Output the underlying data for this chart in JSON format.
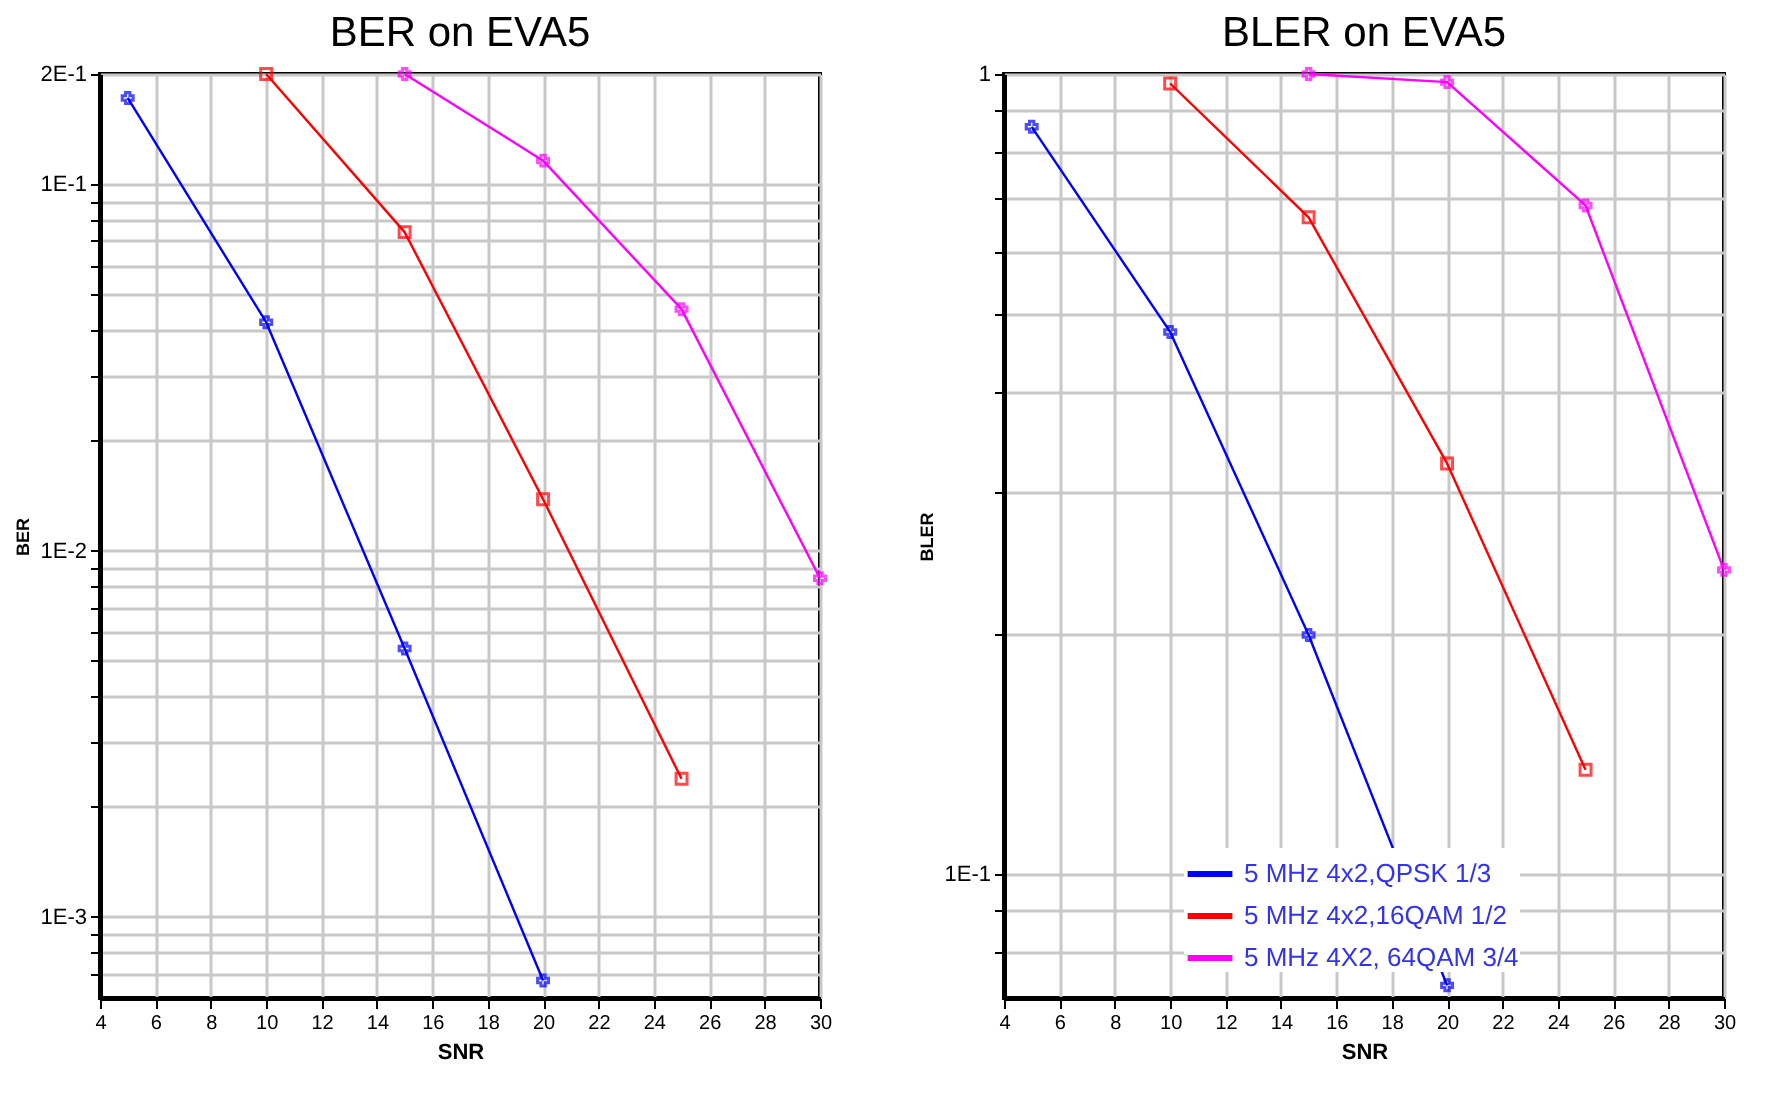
{
  "chart_data": [
    {
      "type": "line",
      "title": "BER on EVA5",
      "xlabel": "SNR",
      "ylabel": "BER",
      "log": "y",
      "grid": true,
      "legend": false,
      "xlim": [
        4,
        30
      ],
      "xticks": [
        4,
        6,
        8,
        10,
        12,
        14,
        16,
        18,
        20,
        22,
        24,
        26,
        28,
        30
      ],
      "ylim": [
        0.0006,
        0.2
      ],
      "yticks": [
        {
          "value": 0.2,
          "label": "2E-1"
        },
        {
          "value": 0.1,
          "label": "1E-1"
        },
        {
          "value": 0.09,
          "label": null
        },
        {
          "value": 0.08,
          "label": null
        },
        {
          "value": 0.07,
          "label": null
        },
        {
          "value": 0.06,
          "label": null
        },
        {
          "value": 0.05,
          "label": null
        },
        {
          "value": 0.04,
          "label": null
        },
        {
          "value": 0.03,
          "label": null
        },
        {
          "value": 0.02,
          "label": null
        },
        {
          "value": 0.01,
          "label": "1E-2"
        },
        {
          "value": 0.009,
          "label": null
        },
        {
          "value": 0.008,
          "label": null
        },
        {
          "value": 0.007,
          "label": null
        },
        {
          "value": 0.006,
          "label": null
        },
        {
          "value": 0.005,
          "label": null
        },
        {
          "value": 0.004,
          "label": null
        },
        {
          "value": 0.003,
          "label": null
        },
        {
          "value": 0.002,
          "label": null
        },
        {
          "value": 0.001,
          "label": "1E-3"
        },
        {
          "value": 0.0009,
          "label": null
        },
        {
          "value": 0.0008,
          "label": null
        },
        {
          "value": 0.0007,
          "label": null
        }
      ],
      "series": [
        {
          "color": "#0000ff",
          "marker": "cross",
          "x": [
            5,
            10,
            15,
            20
          ],
          "values": [
            0.172,
            0.042,
            0.0054,
            0.00067
          ]
        },
        {
          "color": "#ff0000",
          "marker": "square",
          "x": [
            10,
            15,
            20,
            25
          ],
          "values": [
            0.2,
            0.074,
            0.0138,
            0.00238
          ]
        },
        {
          "color": "#ff00ff",
          "marker": "cross",
          "x": [
            15,
            20,
            25,
            30
          ],
          "values": [
            0.2,
            0.116,
            0.0456,
            0.0084
          ]
        }
      ]
    },
    {
      "type": "line",
      "title": "BLER on EVA5",
      "xlabel": "SNR",
      "ylabel": "BLER",
      "log": "y",
      "grid": true,
      "legend": "bottom",
      "xlim": [
        4,
        30
      ],
      "xticks": [
        4,
        6,
        8,
        10,
        12,
        14,
        16,
        18,
        20,
        22,
        24,
        26,
        28,
        30
      ],
      "ylim": [
        0.07,
        1
      ],
      "yticks": [
        1,
        {
          "value": 0.9,
          "label": null
        },
        {
          "value": 0.8,
          "label": null
        },
        {
          "value": 0.7,
          "label": null
        },
        {
          "value": 0.6,
          "label": null
        },
        {
          "value": 0.5,
          "label": null
        },
        {
          "value": 0.4,
          "label": null
        },
        {
          "value": 0.3,
          "label": null
        },
        {
          "value": 0.2,
          "label": null
        },
        {
          "value": 0.1,
          "label": "1E-1"
        },
        {
          "value": 0.09,
          "label": null
        },
        {
          "value": 0.08,
          "label": null
        }
      ],
      "series": [
        {
          "name": "5 MHz 4x2,QPSK 1/3",
          "color": "#0000ff",
          "marker": "cross",
          "x": [
            5,
            10,
            15,
            20
          ],
          "values": [
            0.859,
            0.476,
            0.199,
            0.0726
          ]
        },
        {
          "name": "5 MHz 4x2,16QAM 1/2",
          "color": "#ff0000",
          "marker": "square",
          "x": [
            10,
            15,
            20,
            25
          ],
          "values": [
            0.973,
            0.662,
            0.326,
            0.135
          ]
        },
        {
          "name": "5 MHz 4X2, 64QAM 3/4",
          "color": "#ff00ff",
          "marker": "cross",
          "x": [
            15,
            20,
            25,
            30
          ],
          "values": [
            1.0,
            0.977,
            0.685,
            0.24
          ]
        }
      ]
    }
  ]
}
